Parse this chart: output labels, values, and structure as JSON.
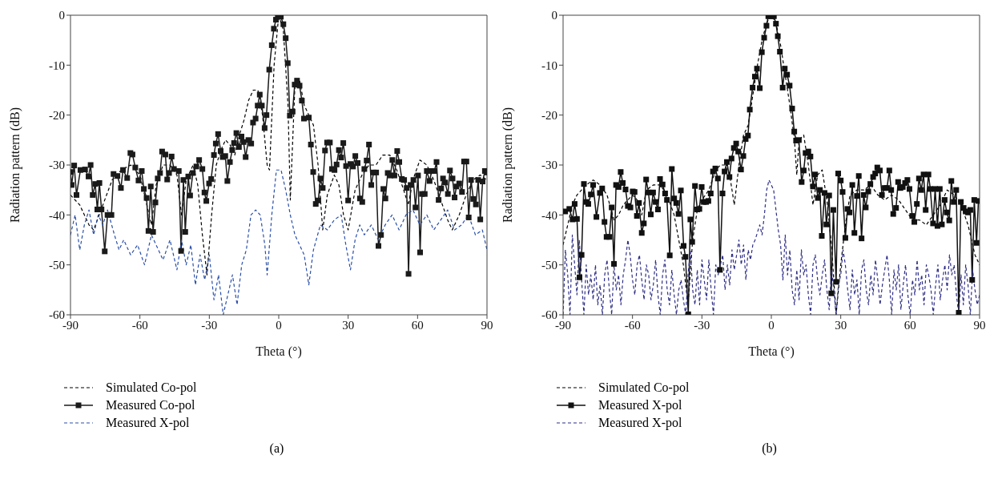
{
  "chart_data": [
    {
      "type": "line",
      "xlabel": "Theta (°)",
      "ylabel": "Radiation pattern (dB)",
      "xlim": [
        -90,
        90
      ],
      "xticks": [
        -90,
        -60,
        -30,
        0,
        30,
        60,
        90
      ],
      "ylim": [
        -60,
        0
      ],
      "yticks": [
        -60,
        -50,
        -40,
        -30,
        -20,
        -10,
        0
      ],
      "grid": false,
      "legend": "bottom",
      "annotations": [
        "(a)"
      ],
      "series": [
        {
          "name": "Simulated Co-pol",
          "color": "#000000",
          "line_style": "dashed",
          "marker": "none",
          "x": [
            -90,
            -86,
            -82,
            -80,
            -76,
            -72,
            -68,
            -64,
            -60,
            -57,
            -55,
            -53,
            -50,
            -47,
            -44,
            -42,
            -40,
            -37,
            -35,
            -33,
            -31,
            -29,
            -27,
            -25,
            -23,
            -21,
            -19,
            -17,
            -15,
            -13,
            -11,
            -9,
            -7,
            -5,
            -4,
            -2,
            0,
            2,
            4,
            5,
            7,
            9,
            11,
            13,
            15,
            17,
            19,
            21,
            24,
            26,
            28,
            30,
            33,
            36,
            39,
            42,
            45,
            48,
            51,
            54,
            56,
            58,
            61,
            64,
            67,
            70,
            73,
            75,
            78,
            81,
            84,
            87,
            90
          ],
          "values": [
            -36,
            -38,
            -42,
            -43,
            -38,
            -33,
            -31,
            -30,
            -32,
            -38,
            -42,
            -34,
            -30,
            -30,
            -32,
            -40,
            -33,
            -30,
            -34,
            -44,
            -52,
            -40,
            -30,
            -27,
            -25,
            -26,
            -28,
            -24,
            -21,
            -17,
            -15,
            -15,
            -20,
            -30,
            -31,
            -10,
            0,
            -3,
            -18,
            -37,
            -14,
            -13,
            -18,
            -20,
            -22,
            -30,
            -43,
            -36,
            -32,
            -34,
            -40,
            -43,
            -35,
            -32,
            -30,
            -30,
            -28,
            -28,
            -31,
            -35,
            -38,
            -33,
            -29,
            -30,
            -33,
            -37,
            -41,
            -43,
            -40,
            -36,
            -33,
            -32,
            -33
          ]
        },
        {
          "name": "Measured Co-pol",
          "color": "#1a1a1a",
          "line_style": "solid",
          "marker": "square",
          "x": [
            -90,
            -89.5,
            -88.4,
            -87.4,
            -85.7,
            -83.7,
            -82.2,
            -81.3,
            -80.4,
            -79.3,
            -78.4,
            -77.5,
            -76.6,
            -75.2,
            -74,
            -72.3,
            -71.4,
            -69.7,
            -68.2,
            -67.3,
            -65.5,
            -64.1,
            -63.2,
            -62,
            -60.6,
            -59.2,
            -58.3,
            -57.1,
            -56.3,
            -55.3,
            -54.3,
            -53.3,
            -52.3,
            -51.3,
            -50.4,
            -49,
            -48.2,
            -47.4,
            -46.3,
            -45.3,
            -43.2,
            -42.2,
            -41.2,
            -40.4,
            -39.1,
            -38.3,
            -37.1,
            -35.6,
            -34.4,
            -33,
            -32.1,
            -31.3,
            -30.1,
            -29.2,
            -28,
            -27.2,
            -26.2,
            -25.1,
            -24.2,
            -23.1,
            -22.2,
            -21.1,
            -20.1,
            -19.3,
            -18.3,
            -17.2,
            -16.1,
            -15.2,
            -14.3,
            -13.1,
            -11.9,
            -11.1,
            -10,
            -9.1,
            -8.2,
            -7.3,
            -6.1,
            -5.3,
            -4.1,
            -3,
            -2.1,
            -1.2,
            -0.4,
            0.9,
            2,
            3,
            3.9,
            4.8,
            6,
            6.9,
            7.9,
            9,
            10,
            10.9,
            13,
            13.9,
            14.9,
            16,
            17.1,
            18,
            19,
            20,
            20.9,
            22.1,
            23,
            24.1,
            25,
            26,
            27,
            27.9,
            29.1,
            30,
            31,
            32.1,
            33.1,
            34.1,
            35.1,
            36.1,
            37,
            38,
            39,
            40,
            41,
            42.1,
            43.1,
            44.2,
            45.2,
            46.1,
            47.1,
            48.3,
            49.1,
            50,
            51.2,
            52.1,
            53.2,
            54.2,
            55.3,
            56.1,
            57,
            58.2,
            59.1,
            60.2,
            61.1,
            61.9,
            63.1,
            64,
            65.2,
            66.1,
            67.3,
            68.2,
            69.1,
            70.2,
            71,
            71.9,
            73.1,
            74,
            75.1,
            76,
            76.8,
            78,
            79.2,
            80.1,
            81.1,
            82.1,
            83.1,
            84.1,
            85.2,
            86.2,
            87.1,
            88.1,
            89.1,
            90
          ],
          "values": [
            -31.4,
            -34,
            -30.1,
            -36,
            -31,
            -30.9,
            -32.3,
            -30,
            -36,
            -33.8,
            -38.9,
            -33.6,
            -38.9,
            -47.3,
            -40,
            -40,
            -31.8,
            -32.2,
            -34.6,
            -31,
            -32.6,
            -27.6,
            -27.9,
            -30.5,
            -33.1,
            -31.2,
            -34.8,
            -36.6,
            -43.2,
            -34.3,
            -43.4,
            -37.5,
            -32.7,
            -31.6,
            -27.3,
            -27.9,
            -32.9,
            -31.6,
            -28.3,
            -30.8,
            -31.2,
            -47.2,
            -33,
            -43.4,
            -32.3,
            -36.1,
            -31.6,
            -30.3,
            -29,
            -30.8,
            -35.5,
            -37.2,
            -33.7,
            -32.8,
            -28,
            -25.7,
            -23.8,
            -27.2,
            -28.4,
            -28.2,
            -33.2,
            -29.4,
            -27,
            -25.6,
            -23.6,
            -26.4,
            -24.3,
            -25.4,
            -28.4,
            -25,
            -25.7,
            -21.5,
            -20.7,
            -18.1,
            -15.9,
            -18.1,
            -22.6,
            -20,
            -10.9,
            -6,
            -2.7,
            -0.9,
            -0.3,
            -0.3,
            -1.8,
            -4.6,
            -9.6,
            -20.1,
            -19.3,
            -13.9,
            -13.1,
            -14.1,
            -17.1,
            -20.7,
            -20.5,
            -25.9,
            -31.4,
            -37.8,
            -37.1,
            -32.7,
            -34.6,
            -27.1,
            -25.5,
            -25.5,
            -30.8,
            -31,
            -29.9,
            -27,
            -28.5,
            -25.6,
            -30.2,
            -37.1,
            -29.8,
            -30.3,
            -28.2,
            -29.6,
            -36.7,
            -37.4,
            -30.8,
            -29.1,
            -25.9,
            -34,
            -31.5,
            -31.5,
            -46.2,
            -44,
            -34.8,
            -36.7,
            -31.6,
            -32.1,
            -29,
            -32.1,
            -27.2,
            -29.4,
            -32.8,
            -33,
            -34.6,
            -51.8,
            -34,
            -33,
            -38.5,
            -32.1,
            -47.5,
            -35.8,
            -35.8,
            -31.2,
            -33.2,
            -31.2,
            -31.2,
            -29.4,
            -37,
            -34.7,
            -32.7,
            -33.5,
            -35.8,
            -31.1,
            -32.7,
            -36.5,
            -34.3,
            -33.7,
            -35.4,
            -29.3,
            -29.3,
            -40.5,
            -33,
            -36.8,
            -37.9,
            -33,
            -40.9,
            -33.3,
            -31.2,
            -31.5
          ]
        },
        {
          "name": "Measured X-pol",
          "color": "#2a4fa8",
          "line_style": "dashed",
          "marker": "none",
          "x": [
            -90,
            -88,
            -86,
            -84,
            -82,
            -80,
            -78,
            -76,
            -74,
            -71,
            -69,
            -67,
            -64,
            -61,
            -58,
            -55,
            -53,
            -50,
            -47,
            -44,
            -42,
            -40,
            -38,
            -36,
            -34,
            -32,
            -30,
            -28,
            -26,
            -24,
            -22,
            -20,
            -18,
            -16,
            -14,
            -12,
            -10,
            -8,
            -6,
            -5,
            -3,
            -1,
            1,
            3,
            5,
            7,
            9,
            11,
            13,
            15,
            18,
            21,
            24,
            27,
            29,
            31,
            33,
            35,
            37,
            40,
            43,
            46,
            49,
            52,
            55,
            58,
            61,
            64,
            67,
            70,
            73,
            76,
            79,
            82,
            85,
            88,
            90
          ],
          "values": [
            -44,
            -40,
            -47,
            -42,
            -39,
            -44,
            -40,
            -42,
            -39,
            -44,
            -47,
            -45,
            -48,
            -46,
            -50,
            -44,
            -46,
            -49,
            -45,
            -51,
            -45,
            -50,
            -46,
            -54,
            -48,
            -53,
            -48,
            -57,
            -52,
            -60,
            -56,
            -52,
            -58,
            -50,
            -47,
            -40,
            -39,
            -40,
            -46,
            -52,
            -40,
            -31,
            -31,
            -35,
            -40,
            -44,
            -46,
            -48,
            -54,
            -47,
            -42,
            -43,
            -41,
            -40,
            -46,
            -51,
            -45,
            -42,
            -44,
            -42,
            -45,
            -42,
            -40,
            -43,
            -40,
            -39,
            -42,
            -40,
            -43,
            -41,
            -39,
            -43,
            -42,
            -40,
            -44,
            -43,
            -47
          ]
        }
      ]
    },
    {
      "type": "line",
      "xlabel": "Theta (°)",
      "ylabel": "Radiation pattern (dB)",
      "xlim": [
        -90,
        90
      ],
      "xticks": [
        -90,
        -60,
        -30,
        0,
        30,
        60,
        90
      ],
      "ylim": [
        -60,
        0
      ],
      "yticks": [
        -60,
        -50,
        -40,
        -30,
        -20,
        -10,
        0
      ],
      "grid": false,
      "legend": "bottom",
      "annotations": [
        "(b)"
      ],
      "series": [
        {
          "name": "Simulated Co-pol",
          "color": "#000000",
          "line_style": "dashed",
          "marker": "none",
          "x": [
            -90,
            -88,
            -86,
            -84,
            -82,
            -80,
            -77,
            -74,
            -71,
            -68,
            -66,
            -64,
            -62,
            -60,
            -58,
            -56,
            -54,
            -51,
            -48,
            -45,
            -42,
            -40,
            -38,
            -36,
            -34,
            -32,
            -30,
            -27,
            -24,
            -22,
            -20,
            -18,
            -16,
            -14,
            -12,
            -10,
            -8,
            -6,
            -4,
            -2,
            0,
            2,
            4,
            6,
            8,
            10,
            11,
            12,
            14,
            16,
            18,
            20,
            22,
            24,
            26,
            28,
            30,
            32,
            34,
            37,
            40,
            43,
            46,
            49,
            52,
            55,
            58,
            61,
            64,
            67,
            70,
            73,
            76,
            79,
            82,
            85,
            88,
            90
          ],
          "values": [
            -46,
            -42,
            -38,
            -36,
            -35,
            -34,
            -33,
            -34,
            -36,
            -41,
            -40,
            -38,
            -37,
            -36,
            -37,
            -40,
            -35,
            -34,
            -34,
            -36,
            -40,
            -45,
            -50,
            -58,
            -45,
            -39,
            -37,
            -35,
            -31,
            -30,
            -30,
            -32,
            -38,
            -30,
            -24,
            -22,
            -16,
            -10,
            -5,
            -1.5,
            0,
            -1.5,
            -6,
            -12,
            -18,
            -25,
            -32,
            -25,
            -24,
            -30,
            -38,
            -32,
            -31,
            -37,
            -46,
            -60,
            -50,
            -42,
            -36,
            -35,
            -35,
            -34,
            -36,
            -37,
            -36,
            -37,
            -39,
            -41,
            -41,
            -42,
            -40,
            -38,
            -35,
            -36,
            -38,
            -42,
            -48,
            -50
          ]
        },
        {
          "name": "Measured X-pol",
          "color": "#111111",
          "line_style": "solid",
          "marker": "square",
          "x": [
            -89.1,
            -87.3,
            -85.9,
            -85,
            -84,
            -82.9,
            -82,
            -81,
            -80.1,
            -79.1,
            -78,
            -77,
            -75.6,
            -74.1,
            -73.1,
            -72.1,
            -71.2,
            -70,
            -69,
            -68,
            -67.1,
            -66,
            -65.1,
            -64.2,
            -63,
            -62,
            -60.9,
            -59.9,
            -59.1,
            -58.1,
            -57.2,
            -56,
            -55.1,
            -54.1,
            -53.1,
            -52.1,
            -51.1,
            -50,
            -49,
            -48.1,
            -47,
            -45.9,
            -45.1,
            -43.9,
            -43,
            -42,
            -41.1,
            -40.1,
            -39.1,
            -37.9,
            -37.1,
            -35.9,
            -35,
            -34.2,
            -33,
            -32,
            -31.1,
            -30.1,
            -29.2,
            -28.2,
            -27.2,
            -26.2,
            -25.2,
            -24.2,
            -23.1,
            -22.2,
            -21.1,
            -20.2,
            -19.2,
            -18.1,
            -17.2,
            -16.2,
            -15.2,
            -14.3,
            -13.1,
            -12.1,
            -11.1,
            -10.1,
            -9.3,
            -8.1,
            -7.1,
            -6.2,
            -5,
            -4.1,
            -3.1,
            -2.1,
            -1.3,
            0,
            1.1,
            2,
            2.8,
            3.7,
            4.9,
            5.8,
            6.8,
            7.9,
            9,
            9.9,
            10.7,
            11.9,
            13.1,
            14,
            14.8,
            16,
            16.9,
            18,
            18.9,
            20.1,
            21,
            21.8,
            23,
            23.8,
            25,
            25.9,
            26.8,
            28,
            28.9,
            30,
            30.8,
            32,
            32.9,
            33.8,
            35,
            35.9,
            37,
            37.8,
            39,
            39.9,
            40.8,
            41.9,
            42.8,
            44,
            44.9,
            45.8,
            46.9,
            47.8,
            49,
            50,
            51,
            51.8,
            52.7,
            53.9,
            54.8,
            55.8,
            56.8,
            57.8,
            58.8,
            59.7,
            60.9,
            61.8,
            62.9,
            63.8,
            64.8,
            65.8,
            66.7,
            67.9,
            68.7,
            69.9,
            70.8,
            71.8,
            72.8,
            73.7,
            74.9,
            75.8,
            76.9,
            77.8,
            78.8,
            79.9,
            81,
            81.9,
            83.1,
            84,
            85,
            86,
            86.8,
            87.7,
            88.7,
            89.5
          ],
          "values": [
            -39.3,
            -38.8,
            -40.9,
            -37.8,
            -40.8,
            -52.5,
            -48,
            -33.8,
            -37.4,
            -37.8,
            -35.9,
            -34,
            -40.4,
            -35.6,
            -34.7,
            -41.4,
            -44.4,
            -44.4,
            -38.5,
            -49.8,
            -34,
            -34.4,
            -31.4,
            -33.6,
            -34.9,
            -38.2,
            -38.5,
            -35.3,
            -35.4,
            -40.2,
            -37.6,
            -43.6,
            -41.7,
            -32.9,
            -35.5,
            -39.9,
            -35.5,
            -37.4,
            -38.9,
            -32.8,
            -33.9,
            -35.7,
            -37,
            -48.1,
            -30.8,
            -36.7,
            -37.6,
            -39.8,
            -35.1,
            -46.2,
            -48.4,
            -59.9,
            -40.9,
            -45.4,
            -34.2,
            -38.9,
            -38.8,
            -34.4,
            -37.4,
            -37.4,
            -37.2,
            -35.7,
            -31.3,
            -30.7,
            -32.7,
            -51,
            -35.7,
            -31.3,
            -29.4,
            -32.4,
            -28.7,
            -26.6,
            -25.7,
            -27.3,
            -30.9,
            -28.2,
            -24.8,
            -24.1,
            -18.9,
            -14.5,
            -12.3,
            -10.7,
            -14.6,
            -7.4,
            -4.5,
            -2.1,
            -0.2,
            -0.2,
            -0.2,
            -1.7,
            -4.2,
            -7.3,
            -14.5,
            -10.7,
            -11.9,
            -14.1,
            -18.7,
            -23.3,
            -25.1,
            -25,
            -33.4,
            -31.1,
            -27.6,
            -27.3,
            -28.3,
            -34.3,
            -31.9,
            -36.6,
            -35,
            -44.2,
            -35.6,
            -41.9,
            -36.1,
            -55.7,
            -39,
            -53.4,
            -31.7,
            -33.1,
            -35.4,
            -44.6,
            -38.8,
            -39.5,
            -34,
            -43.6,
            -36.2,
            -32.2,
            -44.7,
            -36,
            -38.5,
            -35.3,
            -33.8,
            -32.4,
            -31.7,
            -30.5,
            -31.1,
            -36,
            -34.6,
            -34.6,
            -31.1,
            -35,
            -39.8,
            -38.6,
            -33.4,
            -34.6,
            -34.4,
            -33.6,
            -33,
            -34.8,
            -40.2,
            -41.4,
            -37.8,
            -32.7,
            -35,
            -31.9,
            -39,
            -31.9,
            -34.8,
            -41.7,
            -34.8,
            -42.2,
            -34.8,
            -41.9,
            -37,
            -39.5,
            -41.1,
            -33.2,
            -37.4,
            -35,
            -59.6,
            -37.4,
            -38.6,
            -39.3,
            -39.5,
            -39,
            -53,
            -37,
            -45.6,
            -37.2
          ]
        },
        {
          "name": "Measured X-pol",
          "color": "#2e2e86",
          "line_style": "dashed",
          "marker": "none",
          "x": [
            -90,
            -89,
            -88,
            -87,
            -86,
            -85,
            -84,
            -83,
            -82,
            -81,
            -80,
            -79,
            -78,
            -77,
            -76,
            -75,
            -74,
            -73,
            -72,
            -71,
            -70,
            -69,
            -68,
            -67,
            -66,
            -65,
            -64,
            -63,
            -62,
            -61,
            -60,
            -59,
            -58,
            -57,
            -56,
            -55,
            -54,
            -53,
            -52,
            -51,
            -50,
            -49,
            -48,
            -47,
            -46,
            -45,
            -44,
            -43,
            -42,
            -41,
            -40,
            -39,
            -38,
            -37,
            -36,
            -35,
            -34,
            -33,
            -32,
            -31,
            -30,
            -29,
            -28,
            -27,
            -26,
            -25,
            -24,
            -23,
            -21,
            -20,
            -19,
            -18,
            -17,
            -16,
            -15,
            -14,
            -13,
            -12,
            -11,
            -10,
            -9,
            -8,
            -7,
            -5,
            -4,
            -3,
            -2,
            -1,
            0,
            1,
            2,
            3,
            4,
            5,
            6,
            7,
            8,
            9,
            10,
            11,
            12,
            13,
            14,
            15,
            16,
            17,
            18,
            19,
            20,
            21,
            22,
            23,
            24,
            25,
            26,
            27,
            28,
            29,
            30,
            31,
            32,
            33,
            34,
            35,
            36,
            37,
            38,
            39,
            40,
            41,
            42,
            43,
            44,
            45,
            46,
            47,
            48,
            49,
            50,
            51,
            52,
            53,
            54,
            55,
            56,
            57,
            58,
            59,
            60,
            61,
            62,
            63,
            64,
            65,
            66,
            67,
            68,
            69,
            70,
            71,
            72,
            73,
            74,
            75,
            76,
            77,
            78,
            79,
            80,
            81,
            82,
            83,
            84,
            85,
            86,
            87,
            88,
            89,
            90
          ],
          "values": [
            -60,
            -47,
            -52,
            -60,
            -44,
            -50,
            -56,
            -45,
            -53,
            -60,
            -50,
            -56,
            -52,
            -57,
            -50,
            -58,
            -54,
            -60,
            -52,
            -49,
            -55,
            -60,
            -50,
            -55,
            -52,
            -58,
            -52,
            -49,
            -45,
            -48,
            -53,
            -56,
            -50,
            -48,
            -53,
            -57,
            -50,
            -52,
            -57,
            -54,
            -49,
            -56,
            -60,
            -52,
            -49,
            -55,
            -58,
            -51,
            -56,
            -60,
            -55,
            -53,
            -57,
            -60,
            -52,
            -47,
            -55,
            -58,
            -51,
            -58,
            -49,
            -53,
            -57,
            -49,
            -55,
            -60,
            -50,
            -52,
            -48,
            -55,
            -50,
            -54,
            -47,
            -51,
            -48,
            -45,
            -50,
            -46,
            -53,
            -47,
            -49,
            -46,
            -45,
            -42,
            -44,
            -40,
            -35,
            -33,
            -34,
            -35,
            -39,
            -43,
            -46,
            -53,
            -44,
            -52,
            -47,
            -55,
            -58,
            -51,
            -57,
            -47,
            -52,
            -50,
            -56,
            -60,
            -50,
            -48,
            -53,
            -56,
            -52,
            -49,
            -55,
            -59,
            -51,
            -55,
            -60,
            -54,
            -52,
            -47,
            -50,
            -55,
            -59,
            -51,
            -56,
            -53,
            -60,
            -51,
            -49,
            -55,
            -58,
            -52,
            -56,
            -49,
            -53,
            -58,
            -54,
            -51,
            -48,
            -53,
            -60,
            -51,
            -55,
            -50,
            -59,
            -54,
            -50,
            -56,
            -60,
            -53,
            -56,
            -49,
            -55,
            -52,
            -58,
            -50,
            -52,
            -55,
            -60,
            -54,
            -50,
            -57,
            -53,
            -50,
            -55,
            -48,
            -52,
            -50,
            -56,
            -60,
            -52,
            -58,
            -50,
            -54,
            -60,
            -51,
            -55,
            -58,
            -56
          ]
        }
      ]
    }
  ]
}
